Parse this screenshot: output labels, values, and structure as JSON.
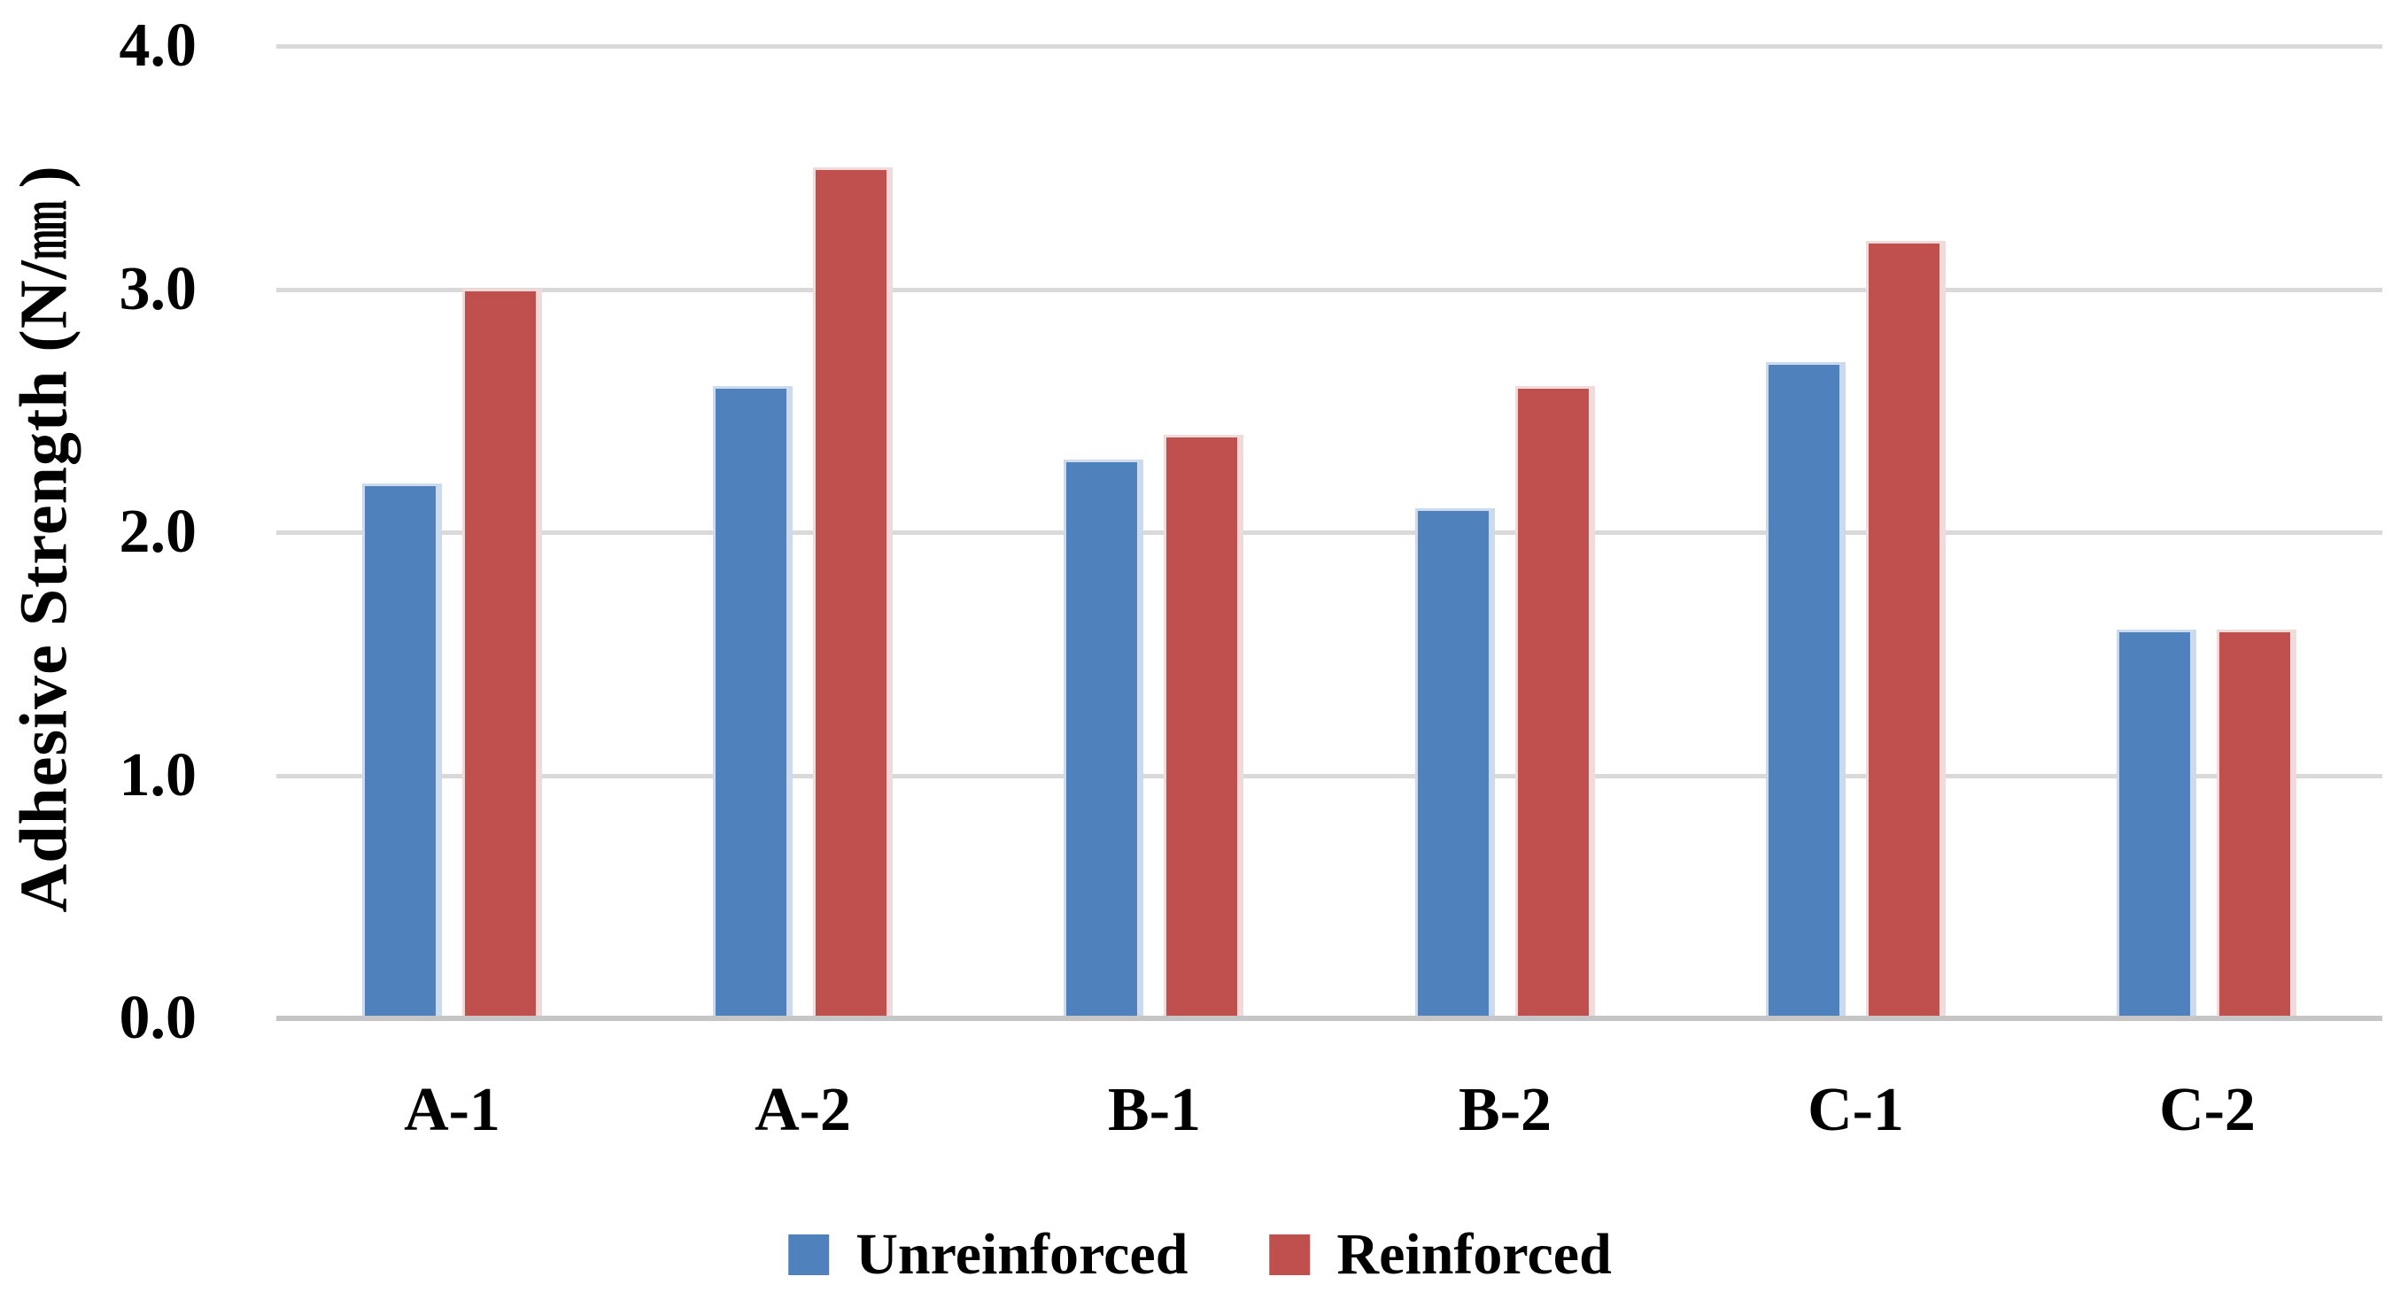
{
  "figure": {
    "background_color": "#FFFFFF",
    "text_color": "#000000"
  },
  "chart_data": {
    "type": "bar",
    "title": "",
    "categories": [
      "A-1",
      "A-2",
      "B-1",
      "B-2",
      "C-1",
      "C-2"
    ],
    "series": [
      {
        "name": "Unreinforced",
        "color": "#4F81BD",
        "edge_color": "#CBDAEC",
        "values": [
          2.2,
          2.6,
          2.3,
          2.1,
          2.7,
          1.6
        ]
      },
      {
        "name": "Reinforced",
        "color": "#C0504D",
        "edge_color": "#F0DBDA",
        "values": [
          3.0,
          3.5,
          2.4,
          2.6,
          3.2,
          1.6
        ]
      }
    ],
    "ylabel": "Adhesive Strength (N/㎜)",
    "ylabel_parts": {
      "prefix": "Adhesive Strength (N/",
      "unit": "mm",
      "suffix": ")"
    },
    "yticks": [
      "0.0",
      "1.0",
      "2.0",
      "3.0",
      "4.0"
    ],
    "ylim": [
      0,
      4
    ],
    "grid": true,
    "gridline_color": "#D9D9D9",
    "axis_line_color": "#C6C6C6",
    "legend_position": "bottom"
  }
}
